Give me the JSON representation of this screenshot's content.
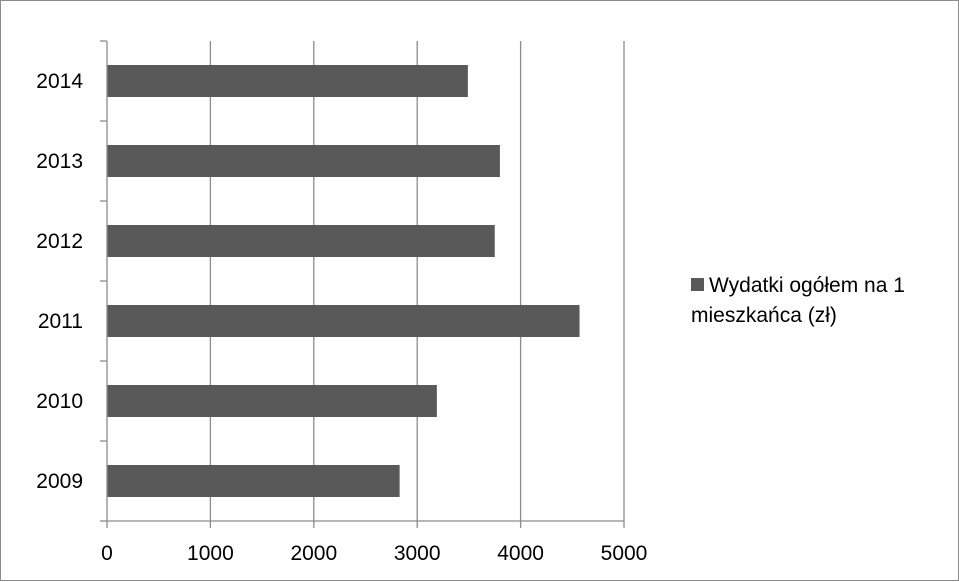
{
  "chart_data": {
    "type": "bar",
    "orientation": "horizontal",
    "categories": [
      "2009",
      "2010",
      "2011",
      "2012",
      "2013",
      "2014"
    ],
    "series": [
      {
        "name": "Wydatki ogółem na 1 mieszkańca (zł)",
        "values": [
          2830,
          3190,
          4570,
          3750,
          3800,
          3490
        ]
      }
    ],
    "xlabel": "",
    "ylabel": "",
    "xlim": [
      0,
      5000
    ],
    "xticks": [
      "0",
      "1000",
      "2000",
      "3000",
      "4000",
      "5000"
    ],
    "grid": "vertical-major",
    "legend_position": "right",
    "colors": {
      "bar": "#595959",
      "grid": "#8c8c8c",
      "axis": "#8c8c8c",
      "frame": "#8c8c8c"
    }
  }
}
